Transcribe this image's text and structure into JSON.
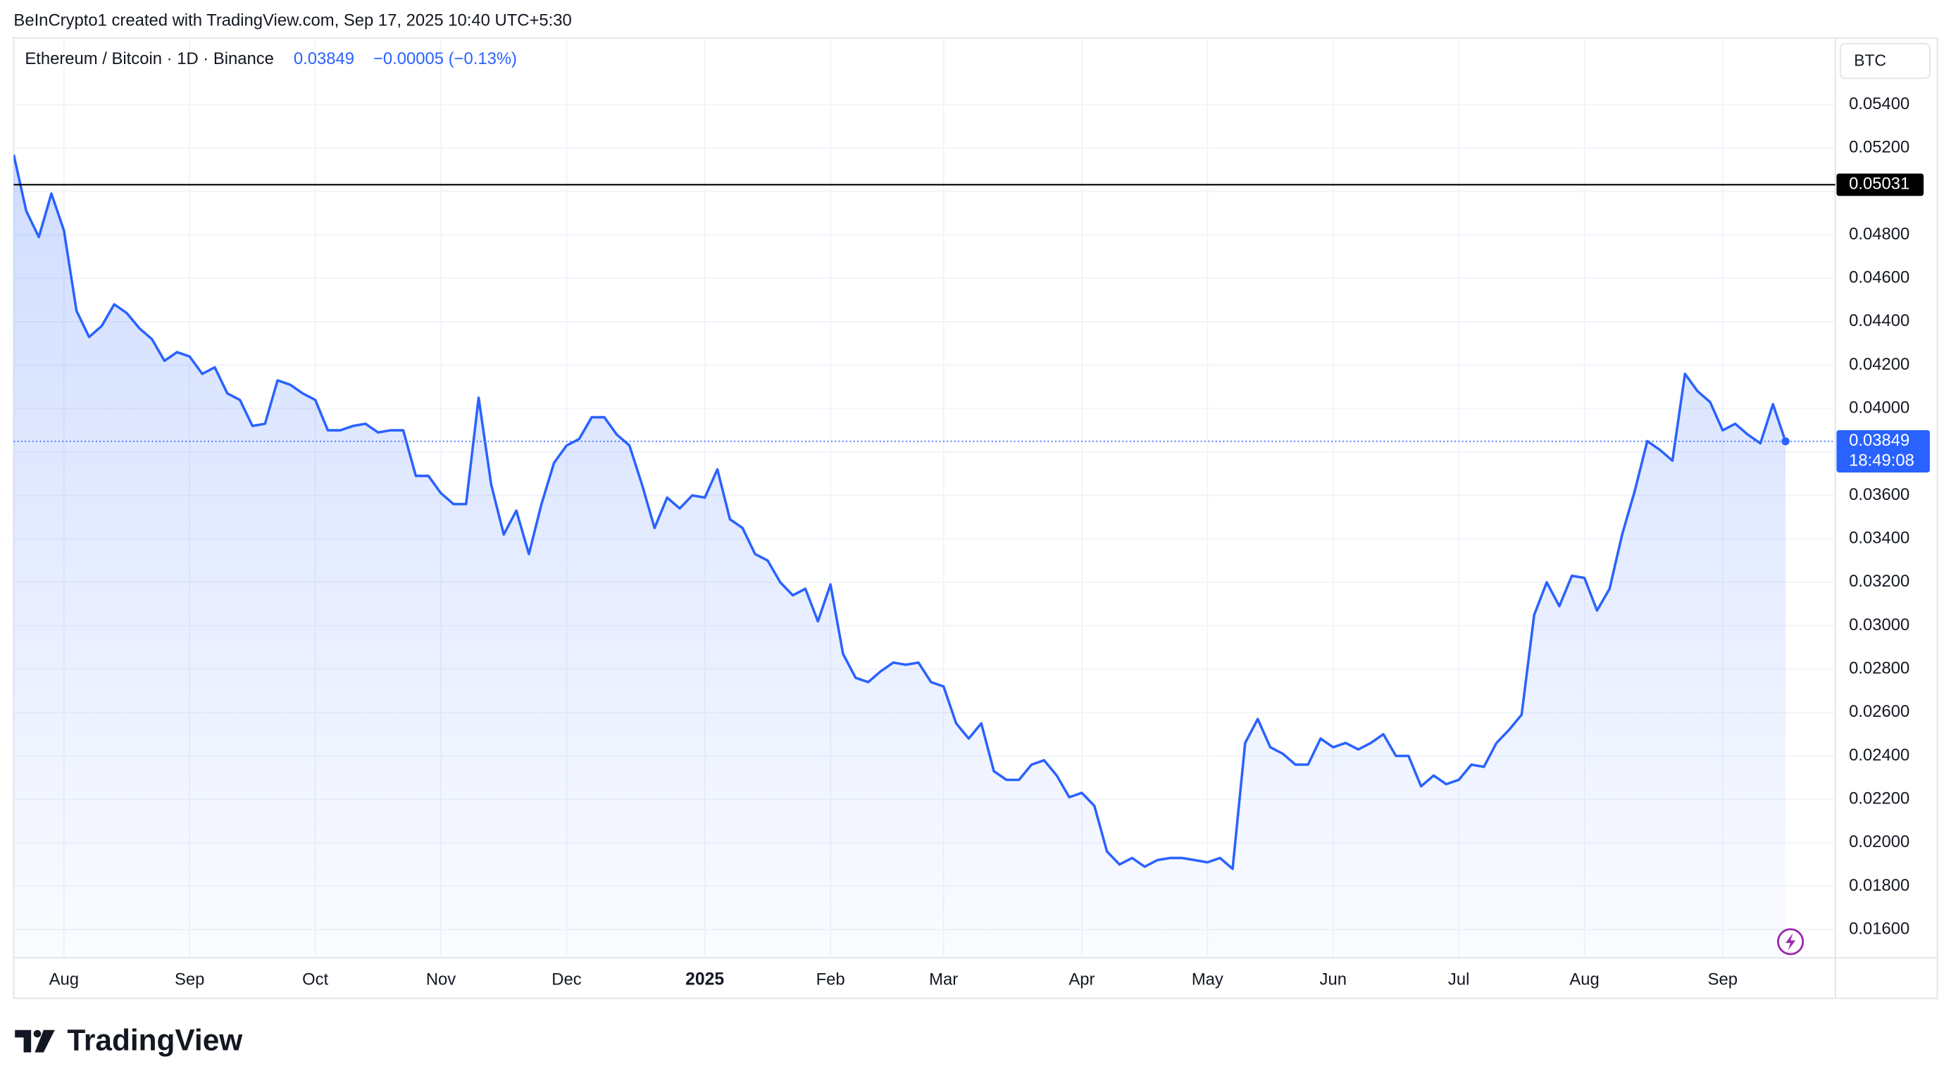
{
  "header": "BeInCrypto1 created with TradingView.com, Sep 17, 2025 10:40 UTC+5:30",
  "logo": "TradingView",
  "chart_data": {
    "type": "area",
    "title": "Ethereum / Bitcoin · 1D · Binance",
    "last": 0.03849,
    "change": "−0.00005 (−0.13%)",
    "countdown": "18:49:08",
    "hline": 0.05031,
    "y_unit": "BTC",
    "color": "#2962ff",
    "grid": true,
    "ylim": [
      0.0147,
      0.0571
    ],
    "yticks": [
      {
        "value": 0.016,
        "label": "0.01600"
      },
      {
        "value": 0.018,
        "label": "0.01800"
      },
      {
        "value": 0.02,
        "label": "0.02000"
      },
      {
        "value": 0.022,
        "label": "0.02200"
      },
      {
        "value": 0.024,
        "label": "0.02400"
      },
      {
        "value": 0.026,
        "label": "0.02600"
      },
      {
        "value": 0.028,
        "label": "0.02800"
      },
      {
        "value": 0.03,
        "label": "0.03000"
      },
      {
        "value": 0.032,
        "label": "0.03200"
      },
      {
        "value": 0.034,
        "label": "0.03400"
      },
      {
        "value": 0.036,
        "label": "0.03600"
      },
      {
        "value": 0.038,
        "label": "0.03800"
      },
      {
        "value": 0.04,
        "label": "0.04000"
      },
      {
        "value": 0.042,
        "label": "0.04200"
      },
      {
        "value": 0.044,
        "label": "0.04400"
      },
      {
        "value": 0.046,
        "label": "0.04600"
      },
      {
        "value": 0.048,
        "label": "0.04800"
      },
      {
        "value": 0.05,
        "label": "0.05000"
      },
      {
        "value": 0.052,
        "label": "0.05200"
      },
      {
        "value": 0.054,
        "label": "0.05400"
      }
    ],
    "categories": [
      null,
      null,
      null,
      null,
      "Aug",
      null,
      null,
      null,
      null,
      null,
      null,
      null,
      null,
      null,
      "Sep",
      null,
      null,
      null,
      null,
      null,
      null,
      null,
      null,
      null,
      "Oct",
      null,
      null,
      null,
      null,
      null,
      null,
      null,
      null,
      null,
      "Nov",
      null,
      null,
      null,
      null,
      null,
      null,
      null,
      null,
      null,
      "Dec",
      null,
      null,
      null,
      null,
      null,
      null,
      null,
      null,
      null,
      null,
      "2025",
      null,
      null,
      null,
      null,
      null,
      null,
      null,
      null,
      null,
      "Feb",
      null,
      null,
      null,
      null,
      null,
      null,
      null,
      null,
      "Mar",
      null,
      null,
      null,
      null,
      null,
      null,
      null,
      null,
      null,
      null,
      "Apr",
      null,
      null,
      null,
      null,
      null,
      null,
      null,
      null,
      null,
      "May",
      null,
      null,
      null,
      null,
      null,
      null,
      null,
      null,
      null,
      "Jun",
      null,
      null,
      null,
      null,
      null,
      null,
      null,
      null,
      null,
      "Jul",
      null,
      null,
      null,
      null,
      null,
      null,
      null,
      null,
      null,
      "Aug",
      null,
      null,
      null,
      null,
      null,
      null,
      null,
      null,
      null,
      null,
      "Sep",
      null,
      null,
      null,
      null,
      null
    ],
    "values": [
      0.0517,
      0.0491,
      0.0479,
      0.0499,
      0.0482,
      0.0445,
      0.0433,
      0.0438,
      0.0448,
      0.0444,
      0.0437,
      0.0432,
      0.0422,
      0.0426,
      0.0424,
      0.0416,
      0.0419,
      0.0407,
      0.0404,
      0.0392,
      0.0393,
      0.0413,
      0.0411,
      0.0407,
      0.0404,
      0.039,
      0.039,
      0.0392,
      0.0393,
      0.0389,
      0.039,
      0.039,
      0.0369,
      0.0369,
      0.0361,
      0.0356,
      0.0356,
      0.0405,
      0.0365,
      0.0342,
      0.0353,
      0.0333,
      0.0356,
      0.0375,
      0.0383,
      0.0386,
      0.0396,
      0.0396,
      0.0388,
      0.0383,
      0.0365,
      0.0345,
      0.0359,
      0.0354,
      0.036,
      0.0359,
      0.0372,
      0.0349,
      0.0345,
      0.0333,
      0.033,
      0.032,
      0.0314,
      0.0317,
      0.0302,
      0.0319,
      0.0287,
      0.0276,
      0.0274,
      0.0279,
      0.0283,
      0.0282,
      0.0283,
      0.0274,
      0.0272,
      0.0255,
      0.0248,
      0.0255,
      0.0233,
      0.0229,
      0.0229,
      0.0236,
      0.0238,
      0.0231,
      0.0221,
      0.0223,
      0.0217,
      0.0196,
      0.019,
      0.0193,
      0.0189,
      0.0192,
      0.0193,
      0.0193,
      0.0192,
      0.0191,
      0.0193,
      0.0188,
      0.0246,
      0.0257,
      0.0244,
      0.0241,
      0.0236,
      0.0236,
      0.0248,
      0.0244,
      0.0246,
      0.0243,
      0.0246,
      0.025,
      0.024,
      0.024,
      0.0226,
      0.0231,
      0.0227,
      0.0229,
      0.0236,
      0.0235,
      0.0246,
      0.0252,
      0.0259,
      0.0305,
      0.032,
      0.0309,
      0.0323,
      0.0322,
      0.0307,
      0.0317,
      0.0342,
      0.0362,
      0.0385,
      0.0381,
      0.0376,
      0.0416,
      0.0408,
      0.0403,
      0.039,
      0.0393,
      0.0388,
      0.0384,
      0.0402,
      0.03849
    ]
  }
}
